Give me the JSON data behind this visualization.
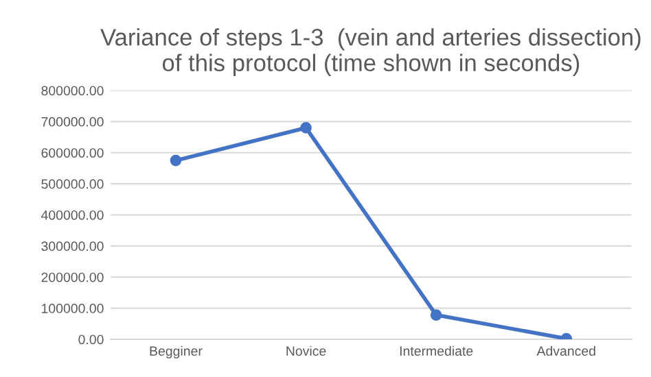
{
  "chart_data": {
    "type": "line",
    "title": "Variance of steps 1-3  (vein and arteries dissection) of this protocol (time shown in seconds)",
    "categories": [
      "Begginer",
      "Novice",
      "Intermediate",
      "Advanced"
    ],
    "series": [
      {
        "color": "#4472c4",
        "values": [
          575000,
          680000,
          78000,
          2000
        ]
      }
    ],
    "ylim": [
      0,
      800000
    ],
    "yticks": [
      {
        "value": 0,
        "label": "0.00"
      },
      {
        "value": 100000,
        "label": "100000.00"
      },
      {
        "value": 200000,
        "label": "200000.00"
      },
      {
        "value": 300000,
        "label": "300000.00"
      },
      {
        "value": 400000,
        "label": "400000.00"
      },
      {
        "value": 500000,
        "label": "500000.00"
      },
      {
        "value": 600000,
        "label": "600000.00"
      },
      {
        "value": 700000,
        "label": "700000.00"
      },
      {
        "value": 800000,
        "label": "800000.00"
      }
    ],
    "grid": "y",
    "marker": "circle",
    "line_style": "solid",
    "legend": false
  }
}
